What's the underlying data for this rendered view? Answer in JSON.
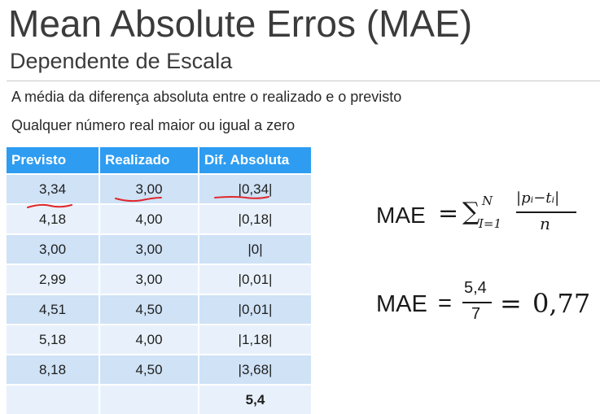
{
  "slide": {
    "title": "Mean Absolute Erros (MAE)",
    "subtitle": "Dependente de Escala",
    "bullets": [
      "A média da diferença absoluta entre o realizado e o previsto",
      "Qualquer número real maior ou igual a zero"
    ]
  },
  "table": {
    "headers": [
      "Previsto",
      "Realizado",
      "Dif. Absoluta"
    ],
    "rows": [
      [
        "3,34",
        "3,00",
        "|0,34|"
      ],
      [
        "4,18",
        "4,00",
        "|0,18|"
      ],
      [
        "3,00",
        "3,00",
        "|0|"
      ],
      [
        "2,99",
        "3,00",
        "|0,01|"
      ],
      [
        "4,51",
        "4,50",
        "|0,01|"
      ],
      [
        "5,18",
        "4,00",
        "|1,18|"
      ],
      [
        "8,18",
        "4,50",
        "|3,68|"
      ]
    ],
    "total_row": [
      "",
      "",
      "5,4"
    ]
  },
  "formula1": {
    "lhs": "MAE",
    "eq": "=",
    "sigma": "∑",
    "upper": "N",
    "lower": "I=1",
    "numerator": "|pᵢ−tᵢ|",
    "denominator": "n"
  },
  "formula2": {
    "lhs": "MAE",
    "eq": "=",
    "numerator": "5,4",
    "denominator": "7",
    "eq2": "=",
    "result": "0,77"
  },
  "colors": {
    "header_bg": "#2e9cf1",
    "row_odd": "#cfe2f6",
    "row_even": "#e8f1fb",
    "annotation_red": "#e0262b"
  }
}
